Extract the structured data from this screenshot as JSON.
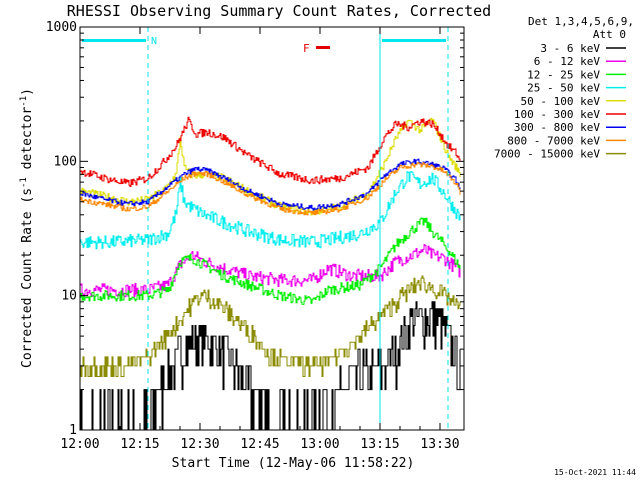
{
  "chart_data": {
    "type": "line",
    "title": "RHESSI Observing Summary Count Rates, Corrected",
    "xlabel": "Start Time (12-May-06 11:58:22)",
    "ylabel_main": "Corrected Count Rate (s",
    "ylabel_sup1": "-1",
    "ylabel_mid": " detector",
    "ylabel_sup2": "-1",
    "ylabel_end": ")",
    "yscale": "log",
    "ylim": [
      1,
      1000
    ],
    "xlim_minutes": [
      0,
      96
    ],
    "x_ticks": [
      {
        "label": "12:00",
        "minute": 0
      },
      {
        "label": "12:15",
        "minute": 15
      },
      {
        "label": "12:30",
        "minute": 30
      },
      {
        "label": "12:45",
        "minute": 45
      },
      {
        "label": "13:00",
        "minute": 60
      },
      {
        "label": "13:15",
        "minute": 75
      },
      {
        "label": "13:30",
        "minute": 90
      }
    ],
    "y_ticks": [
      {
        "label": "1000",
        "value": 1000
      },
      {
        "label": "100",
        "value": 100
      },
      {
        "label": "10",
        "value": 10
      },
      {
        "label": "1",
        "value": 1
      }
    ],
    "legend": {
      "header_line1": "Det 1,3,4,5,6,9,",
      "header_line2": "Att 0",
      "placement": "right"
    },
    "flags": [
      {
        "label": "N",
        "color": "#00e5ee",
        "start_minute": 0,
        "end_minute": 17
      },
      {
        "label": "",
        "color": "#00e5ee",
        "start_minute": 75,
        "end_minute": 92
      }
    ],
    "flare_flag": {
      "label": "F",
      "color": "#e00000"
    },
    "vlines": [
      {
        "minute": 17,
        "style": "dashed",
        "color": "#00e5ee"
      },
      {
        "minute": 75,
        "style": "solid",
        "color": "#00e5ee"
      },
      {
        "minute": 92,
        "style": "dashed",
        "color": "#00e5ee"
      }
    ],
    "series": [
      {
        "name": "3 - 6 keV",
        "color": "#000000"
      },
      {
        "name": "6 - 12 keV",
        "color": "#ee00ee"
      },
      {
        "name": "12 - 25 keV",
        "color": "#00ee00"
      },
      {
        "name": "25 - 50 keV",
        "color": "#00eeee"
      },
      {
        "name": "50 - 100 keV",
        "color": "#dddd00"
      },
      {
        "name": "100 - 300 keV",
        "color": "#ee0000"
      },
      {
        "name": "300 - 800 keV",
        "color": "#0000ee"
      },
      {
        "name": "800 - 7000 keV",
        "color": "#ff8800"
      },
      {
        "name": "7000 - 15000 keV",
        "color": "#8b8b00"
      }
    ],
    "series_points": [
      {
        "minute": [
          0,
          4,
          10,
          17,
          20,
          24,
          25,
          27,
          30,
          34,
          40,
          48,
          56,
          62,
          70,
          75,
          80,
          83,
          86,
          89,
          92,
          94,
          95
        ],
        "value": [
          1.2,
          1.2,
          1.2,
          1.3,
          2.0,
          3.3,
          3.8,
          4.5,
          4.8,
          4.3,
          2.5,
          1.2,
          1.2,
          1.6,
          2.7,
          2.7,
          4.5,
          6.4,
          7.0,
          6.8,
          5.0,
          3.5,
          2.8
        ]
      },
      {
        "minute": [
          0,
          8,
          17,
          22,
          25,
          28,
          31,
          36,
          42,
          50,
          58,
          62,
          68,
          75,
          79,
          83,
          86,
          88,
          91,
          94,
          95
        ],
        "value": [
          11,
          11,
          11,
          12,
          17,
          20,
          18,
          16,
          14,
          13,
          13,
          16,
          14,
          14,
          18,
          20,
          22,
          20,
          19,
          16,
          15
        ]
      },
      {
        "minute": [
          0,
          8,
          17,
          22,
          25,
          28,
          31,
          36,
          42,
          50,
          58,
          62,
          70,
          75,
          79,
          83,
          86,
          88,
          91,
          94,
          95
        ],
        "value": [
          10,
          10,
          10,
          11,
          18,
          19,
          17,
          14,
          12,
          10,
          9,
          11,
          12,
          16,
          24,
          31,
          36,
          30,
          24,
          18,
          16
        ]
      },
      {
        "minute": [
          0,
          8,
          17,
          22,
          24,
          25,
          26,
          28,
          31,
          36,
          42,
          50,
          58,
          62,
          70,
          75,
          79,
          82,
          85,
          88,
          91,
          94,
          95
        ],
        "value": [
          25,
          25,
          26,
          29,
          41,
          70,
          50,
          45,
          40,
          35,
          30,
          26,
          25,
          26,
          29,
          35,
          60,
          78,
          68,
          75,
          58,
          42,
          38
        ]
      },
      {
        "minute": [
          0,
          6,
          12,
          17,
          21,
          24,
          25,
          26,
          28,
          31,
          36,
          42,
          50,
          58,
          65,
          72,
          76,
          79,
          82,
          85,
          88,
          90,
          92,
          94,
          95
        ],
        "value": [
          60,
          55,
          50,
          52,
          61,
          80,
          150,
          90,
          78,
          80,
          75,
          60,
          46,
          42,
          46,
          58,
          95,
          150,
          200,
          170,
          205,
          150,
          110,
          90,
          80
        ]
      },
      {
        "minute": [
          0,
          6,
          12,
          17,
          21,
          24,
          25,
          27,
          29,
          32,
          36,
          42,
          50,
          58,
          65,
          72,
          76,
          79,
          82,
          85,
          88,
          90,
          92,
          94,
          95
        ],
        "value": [
          85,
          75,
          68,
          75,
          100,
          130,
          150,
          200,
          160,
          165,
          150,
          110,
          80,
          72,
          75,
          90,
          150,
          190,
          180,
          200,
          190,
          160,
          130,
          115,
          100
        ]
      },
      {
        "minute": [
          0,
          6,
          12,
          17,
          22,
          26,
          29,
          32,
          36,
          42,
          50,
          58,
          65,
          72,
          76,
          80,
          84,
          88,
          91,
          94,
          95
        ],
        "value": [
          58,
          52,
          48,
          50,
          65,
          80,
          88,
          85,
          75,
          60,
          48,
          45,
          48,
          58,
          78,
          95,
          100,
          95,
          88,
          72,
          62
        ]
      },
      {
        "minute": [
          0,
          6,
          12,
          17,
          22,
          26,
          29,
          32,
          36,
          42,
          50,
          58,
          65,
          72,
          76,
          80,
          84,
          88,
          91,
          94,
          95
        ],
        "value": [
          52,
          48,
          44,
          46,
          60,
          75,
          82,
          80,
          70,
          56,
          44,
          41,
          44,
          54,
          72,
          90,
          95,
          92,
          84,
          68,
          58
        ]
      },
      {
        "minute": [
          0,
          8,
          12,
          17,
          20,
          24,
          27,
          30,
          33,
          36,
          42,
          48,
          54,
          58,
          62,
          66,
          70,
          75,
          78,
          82,
          85,
          88,
          91,
          94,
          95
        ],
        "value": [
          3,
          3,
          3,
          3.5,
          4.5,
          6,
          8,
          10,
          9.5,
          8,
          5.5,
          3.5,
          3,
          3,
          3.2,
          4,
          5,
          7,
          8.5,
          11,
          12.5,
          11.5,
          10,
          8.5,
          8
        ]
      }
    ]
  }
}
